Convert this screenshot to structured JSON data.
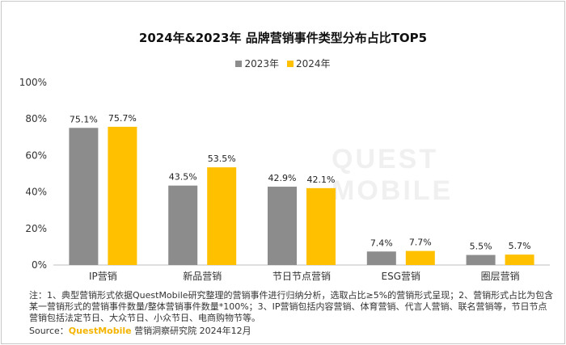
{
  "chart_data": {
    "type": "bar",
    "title": "2024年&2023年 品牌营销事件类型分布占比TOP5",
    "categories": [
      "IP营销",
      "新品营销",
      "节日节点营销",
      "ESG营销",
      "圈层营销"
    ],
    "series": [
      {
        "name": "2023年",
        "values": [
          75.1,
          43.5,
          42.9,
          7.4,
          5.5
        ],
        "color": "#8c8c8c",
        "labels": [
          "75.1%",
          "43.5%",
          "42.9%",
          "7.4%",
          "5.5%"
        ]
      },
      {
        "name": "2024年",
        "values": [
          75.7,
          53.5,
          42.1,
          7.7,
          5.7
        ],
        "color": "#ffc000",
        "labels": [
          "75.7%",
          "53.5%",
          "42.1%",
          "7.7%",
          "5.7%"
        ]
      }
    ],
    "ylim": [
      0,
      100
    ],
    "yticks": [
      "0%",
      "20%",
      "40%",
      "60%",
      "80%",
      "100%"
    ],
    "legend_position": "top-center",
    "grid": false
  },
  "watermark": "QUEST MOBILE",
  "note": "注：1、典型营销形式依据QuestMobile研究整理的营销事件进行归纳分析，选取占比≥5%的营销形式呈现；2、营销形式占比为包含某一营销形式的营销事件数量/整体营销事件数量*100%；3、IP营销包括内容营销、体育营销、代言人营销、联名营销等，节日节点营销包括法定节日、大众节日、小众节日、电商购物节等。",
  "source": {
    "prefix": "Source：",
    "brand": "QuestMobile",
    "suffix": " 营销洞察研究院 2024年12月"
  }
}
